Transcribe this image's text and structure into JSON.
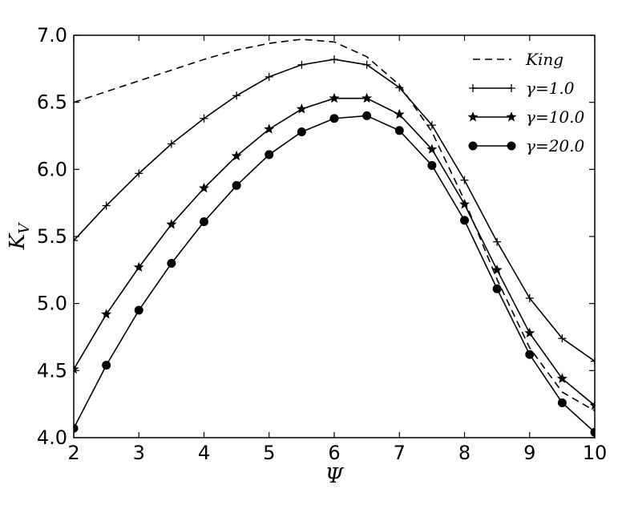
{
  "chart_data": {
    "type": "line",
    "title": "",
    "xlabel": "Ψ",
    "ylabel": "K_V",
    "xlim": [
      2,
      10
    ],
    "ylim": [
      4.0,
      7.0
    ],
    "x_ticks": [
      "2",
      "3",
      "4",
      "5",
      "6",
      "7",
      "8",
      "9",
      "10"
    ],
    "y_ticks": [
      "4.0",
      "4.5",
      "5.0",
      "5.5",
      "6.0",
      "6.5",
      "7.0"
    ],
    "grid": false,
    "legend_position": "top-right",
    "legend_frame": false,
    "series": [
      {
        "name": "King",
        "style": "dashed",
        "marker": "none",
        "color": "#000000",
        "x": [
          2,
          2.5,
          3,
          3.5,
          4,
          4.5,
          5,
          5.5,
          6,
          6.5,
          7,
          7.5,
          8,
          8.5,
          9,
          9.5,
          10
        ],
        "y": [
          6.5,
          6.58,
          6.66,
          6.74,
          6.82,
          6.89,
          6.94,
          6.97,
          6.95,
          6.84,
          6.63,
          6.28,
          5.77,
          5.18,
          4.67,
          4.34,
          4.2
        ]
      },
      {
        "name": "γ=1.0",
        "style": "solid",
        "marker": "plus",
        "color": "#000000",
        "x": [
          2,
          2.5,
          3,
          3.5,
          4,
          4.5,
          5,
          5.5,
          6,
          6.5,
          7,
          7.5,
          8,
          8.5,
          9,
          9.5,
          10
        ],
        "y": [
          5.47,
          5.73,
          5.97,
          6.19,
          6.38,
          6.55,
          6.69,
          6.78,
          6.82,
          6.78,
          6.61,
          6.33,
          5.92,
          5.46,
          5.04,
          4.74,
          4.57
        ]
      },
      {
        "name": "γ=10.0",
        "style": "solid",
        "marker": "star",
        "color": "#000000",
        "x": [
          2,
          2.5,
          3,
          3.5,
          4,
          4.5,
          5,
          5.5,
          6,
          6.5,
          7,
          7.5,
          8,
          8.5,
          9,
          9.5,
          10
        ],
        "y": [
          4.51,
          4.92,
          5.27,
          5.59,
          5.86,
          6.1,
          6.3,
          6.45,
          6.53,
          6.53,
          6.41,
          6.15,
          5.74,
          5.25,
          4.78,
          4.44,
          4.24
        ]
      },
      {
        "name": "γ=20.0",
        "style": "solid",
        "marker": "circle",
        "color": "#000000",
        "x": [
          2,
          2.5,
          3,
          3.5,
          4,
          4.5,
          5,
          5.5,
          6,
          6.5,
          7,
          7.5,
          8,
          8.5,
          9,
          9.5,
          10
        ],
        "y": [
          4.07,
          4.54,
          4.95,
          5.3,
          5.61,
          5.88,
          6.11,
          6.28,
          6.38,
          6.4,
          6.29,
          6.03,
          5.62,
          5.11,
          4.62,
          4.26,
          4.04
        ]
      }
    ]
  }
}
